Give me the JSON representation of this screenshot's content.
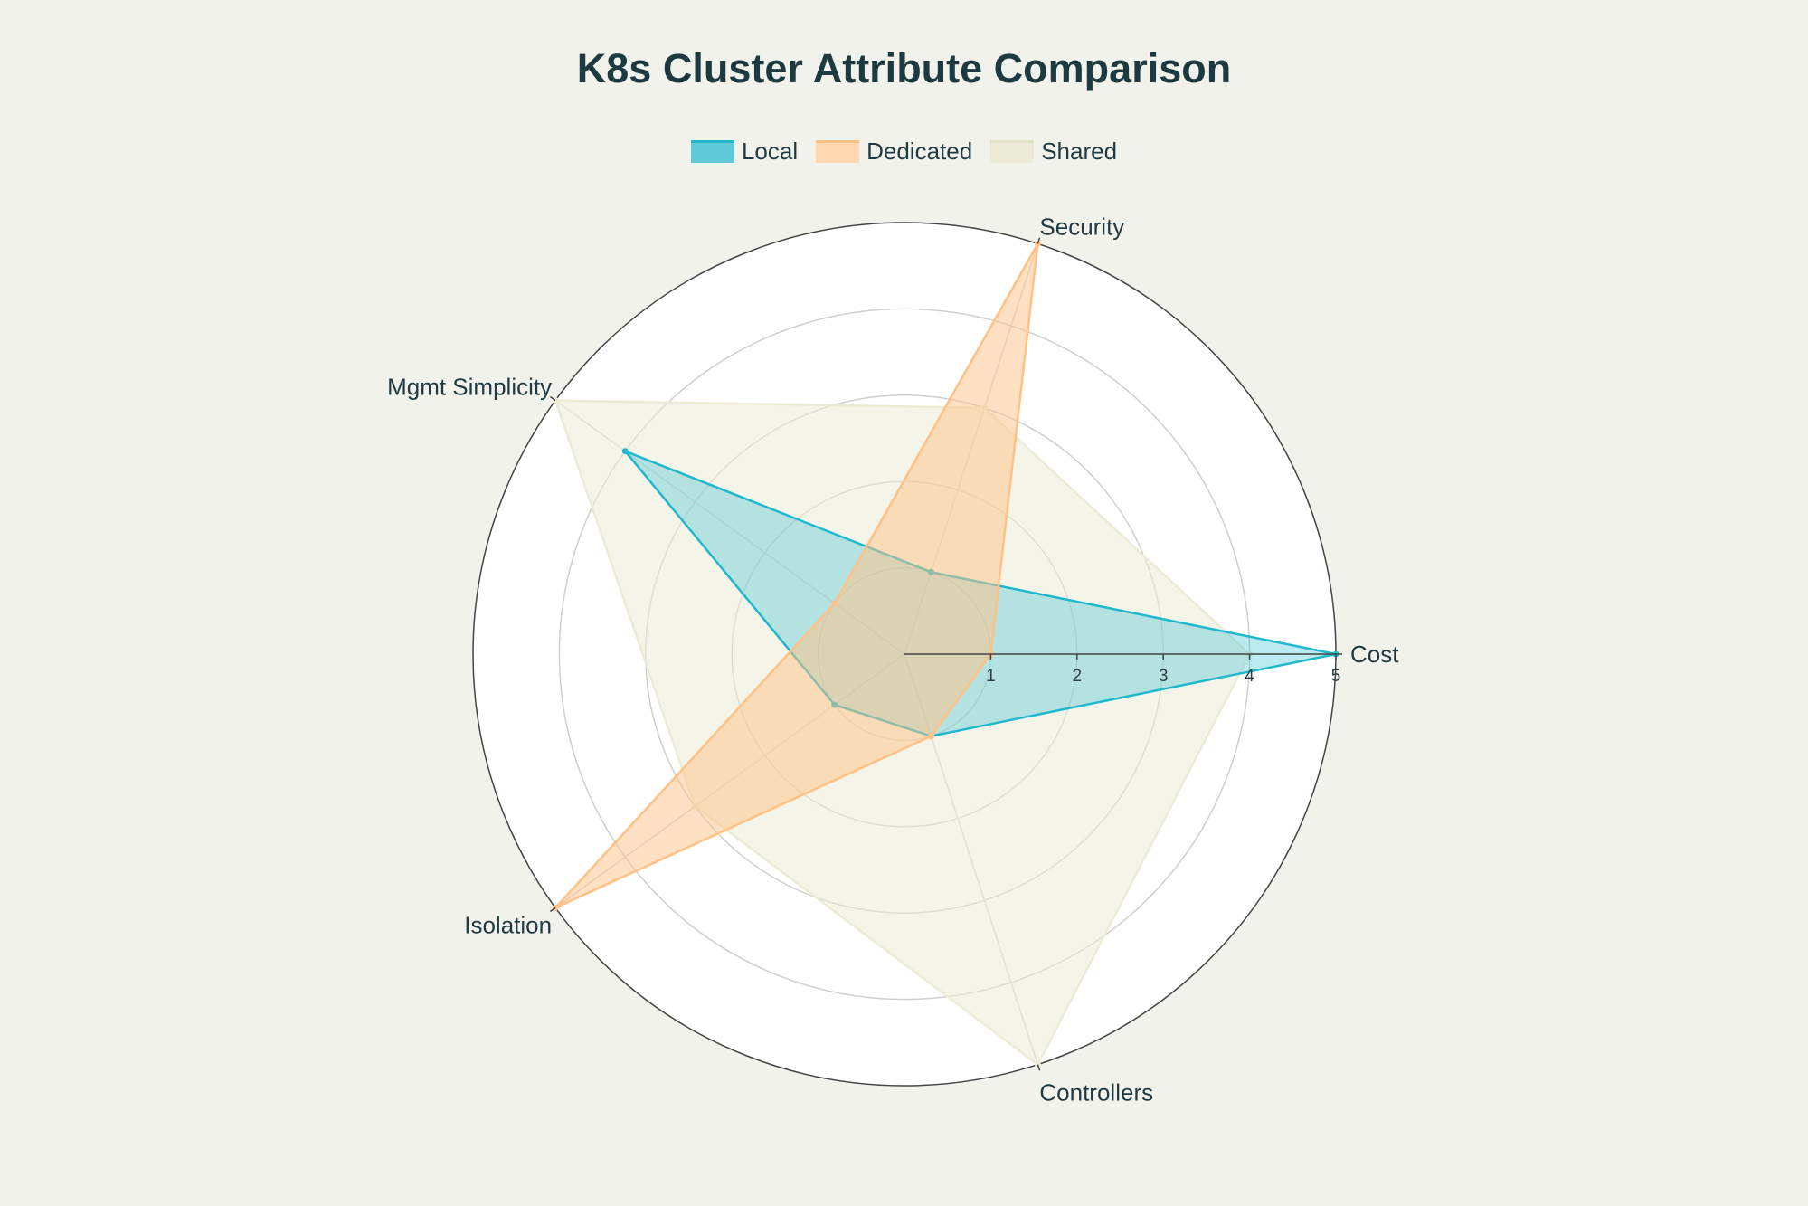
{
  "chart_data": {
    "type": "radar",
    "title": "K8s Cluster Attribute Comparison",
    "axes": [
      "Cost",
      "Security",
      "Mgmt Simplicity",
      "Isolation",
      "Controllers"
    ],
    "radial_range": [
      0,
      5
    ],
    "radial_ticks": [
      "1",
      "2",
      "3",
      "4",
      "5"
    ],
    "legend_position": "top-center",
    "series": [
      {
        "name": "Local",
        "values": [
          5,
          1,
          4,
          1,
          1
        ],
        "color": "#1fb8cd",
        "fill": "rgba(31,184,205,0.30)"
      },
      {
        "name": "Dedicated",
        "values": [
          1,
          5,
          1,
          5,
          1
        ],
        "color": "#ffc185",
        "fill": "rgba(255,193,133,0.50)"
      },
      {
        "name": "Shared",
        "values": [
          4,
          3,
          5,
          3,
          5
        ],
        "color": "#ecebd5",
        "fill": "rgba(236,235,213,0.55)"
      }
    ]
  }
}
